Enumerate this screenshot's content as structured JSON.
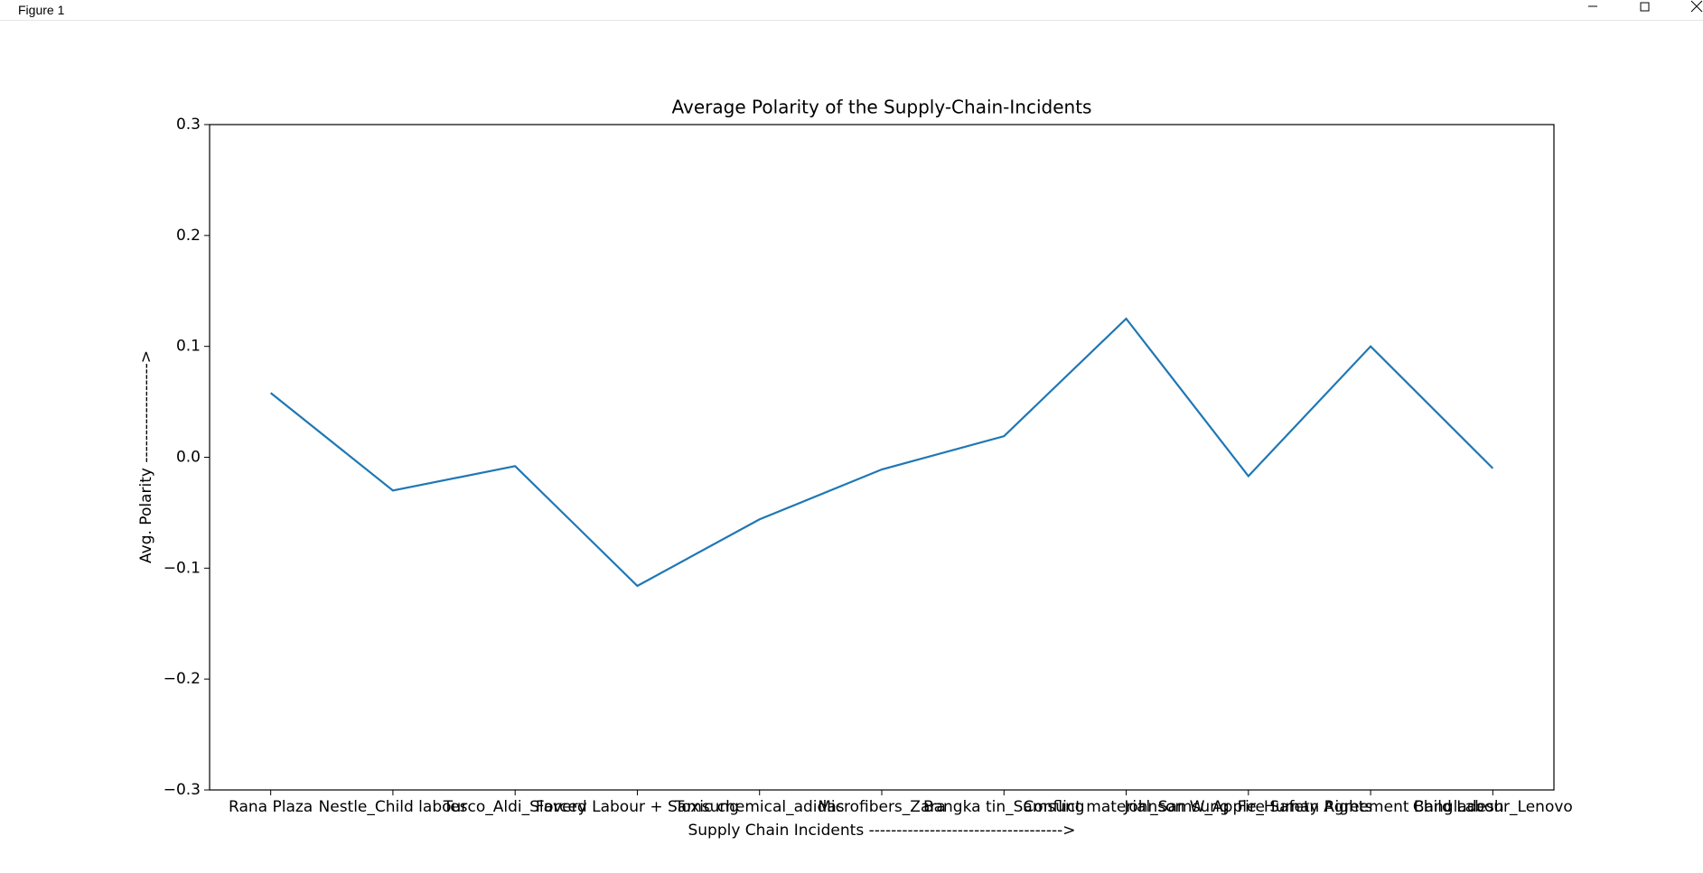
{
  "window": {
    "title": "Figure 1"
  },
  "chart_data": {
    "type": "line",
    "title": "Average Polarity of the Supply-Chain-Incidents",
    "x_label": "Supply Chain Incidents ----------------------------------->",
    "y_label": "Avg. Polarity ------------------>",
    "categories": [
      "Rana Plaza",
      "Nestle_Child labour",
      "Tesco_Aldi_Slavery",
      "Forced Labour + Samsung",
      "Toxic chemical_adidas",
      "Microfibers_Zara",
      "Bangka tin_Samsung",
      "Conflict material_Samsung",
      "Johnson W_Apple_Human Rights",
      "Fire Safety Agreement Bangladesh",
      "Child Labour_Lenovo"
    ],
    "series": [
      {
        "name": "Avg. Polarity",
        "color": "#1f77b4",
        "values": [
          0.058,
          -0.03,
          -0.008,
          -0.116,
          -0.056,
          -0.011,
          0.019,
          0.125,
          -0.017,
          0.1,
          -0.01
        ]
      }
    ],
    "ylim": [
      -0.3,
      0.3
    ],
    "yticks": [
      {
        "value": -0.3,
        "label": "−0.3"
      },
      {
        "value": -0.2,
        "label": "−0.2"
      },
      {
        "value": -0.1,
        "label": "−0.1"
      },
      {
        "value": 0,
        "label": "0.0"
      },
      0.1,
      0.2,
      0.3
    ],
    "grid": false
  }
}
